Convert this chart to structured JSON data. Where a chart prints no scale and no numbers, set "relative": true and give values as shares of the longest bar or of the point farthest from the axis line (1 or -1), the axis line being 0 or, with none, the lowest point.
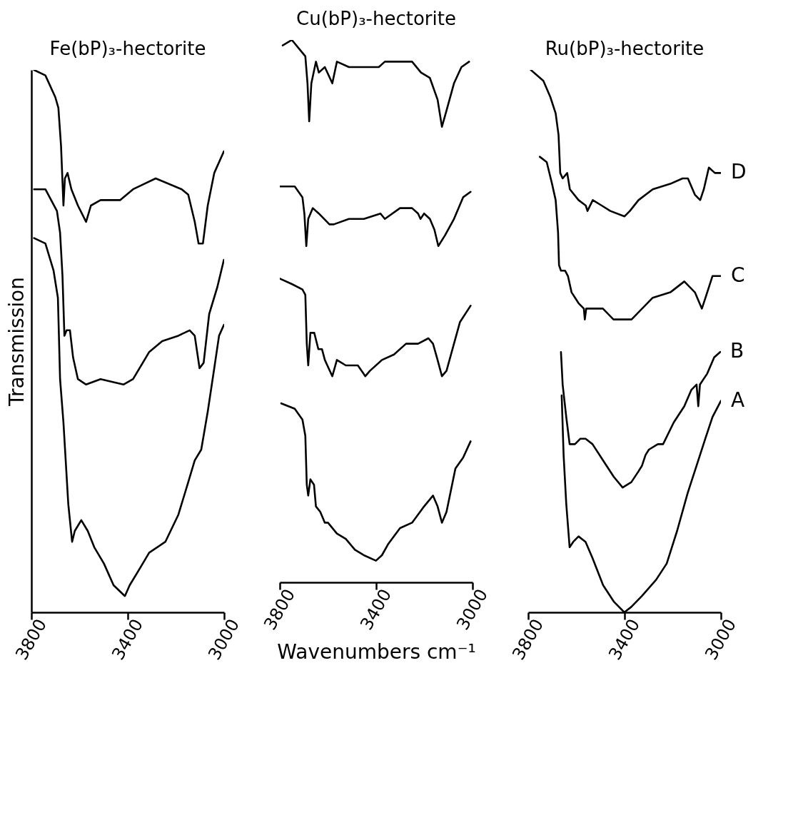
{
  "chart_data": [
    {
      "type": "line",
      "title": "Fe(bP)₃-hectorite",
      "ylabel": "Transmission",
      "relative": true,
      "xlim": [
        3800,
        3000
      ],
      "xticks": [
        3800,
        3400,
        3000
      ],
      "legend": false,
      "series": [
        {
          "color": "#000000",
          "x": [
            3789,
            3742,
            3701,
            3688,
            3677,
            3667,
            3661,
            3650,
            3634,
            3607,
            3573,
            3553,
            3513,
            3432,
            3378,
            3284,
            3176,
            3149,
            3122,
            3106,
            3088,
            3068,
            3041,
            3001
          ],
          "values": [
            1.0,
            0.99,
            0.95,
            0.93,
            0.86,
            0.75,
            0.8,
            0.81,
            0.78,
            0.75,
            0.72,
            0.75,
            0.76,
            0.76,
            0.78,
            0.8,
            0.78,
            0.77,
            0.72,
            0.68,
            0.68,
            0.75,
            0.81,
            0.85
          ]
        },
        {
          "color": "#000000",
          "x": [
            3789,
            3742,
            3694,
            3681,
            3671,
            3663,
            3654,
            3640,
            3627,
            3607,
            3573,
            3513,
            3418,
            3378,
            3311,
            3257,
            3190,
            3143,
            3122,
            3102,
            3085,
            3062,
            3028,
            3001
          ],
          "values": [
            0.78,
            0.78,
            0.74,
            0.7,
            0.62,
            0.51,
            0.52,
            0.52,
            0.47,
            0.43,
            0.42,
            0.43,
            0.42,
            0.43,
            0.48,
            0.5,
            0.51,
            0.52,
            0.51,
            0.45,
            0.46,
            0.55,
            0.6,
            0.65
          ]
        },
        {
          "color": "#000000",
          "x": [
            3789,
            3742,
            3708,
            3690,
            3681,
            3667,
            3647,
            3631,
            3620,
            3593,
            3566,
            3539,
            3499,
            3459,
            3412,
            3392,
            3351,
            3311,
            3244,
            3190,
            3149,
            3122,
            3095,
            3068,
            3041,
            3021,
            3001
          ],
          "values": [
            0.69,
            0.68,
            0.63,
            0.58,
            0.43,
            0.35,
            0.2,
            0.13,
            0.15,
            0.17,
            0.15,
            0.12,
            0.09,
            0.05,
            0.03,
            0.05,
            0.08,
            0.11,
            0.13,
            0.18,
            0.24,
            0.28,
            0.3,
            0.37,
            0.45,
            0.51,
            0.53
          ]
        }
      ]
    },
    {
      "type": "line",
      "title": "Cu(bP)₃-hectorite",
      "xlabel": "Wavenumbers cm⁻¹",
      "relative": true,
      "xlim": [
        3800,
        3000
      ],
      "xticks": [
        3800,
        3400,
        3000
      ],
      "legend": false,
      "series": [
        {
          "color": "#000000",
          "x": [
            3788,
            3750,
            3713,
            3694,
            3685,
            3678,
            3669,
            3650,
            3638,
            3613,
            3582,
            3563,
            3513,
            3451,
            3389,
            3364,
            3251,
            3214,
            3177,
            3145,
            3127,
            3108,
            3077,
            3046,
            3014
          ],
          "values": [
            0.99,
            1.0,
            0.98,
            0.97,
            0.92,
            0.85,
            0.92,
            0.96,
            0.94,
            0.95,
            0.92,
            0.96,
            0.95,
            0.95,
            0.95,
            0.96,
            0.96,
            0.94,
            0.93,
            0.89,
            0.84,
            0.87,
            0.92,
            0.95,
            0.96
          ]
        },
        {
          "color": "#000000",
          "x": [
            3800,
            3738,
            3706,
            3698,
            3690,
            3682,
            3663,
            3638,
            3594,
            3576,
            3513,
            3451,
            3382,
            3364,
            3301,
            3251,
            3226,
            3216,
            3201,
            3177,
            3158,
            3142,
            3114,
            3077,
            3039,
            3008
          ],
          "values": [
            0.73,
            0.73,
            0.71,
            0.68,
            0.62,
            0.67,
            0.69,
            0.68,
            0.66,
            0.66,
            0.67,
            0.67,
            0.68,
            0.67,
            0.69,
            0.69,
            0.68,
            0.67,
            0.68,
            0.67,
            0.65,
            0.62,
            0.64,
            0.67,
            0.71,
            0.72
          ]
        },
        {
          "color": "#000000",
          "x": [
            3800,
            3750,
            3706,
            3694,
            3688,
            3682,
            3673,
            3657,
            3640,
            3625,
            3613,
            3582,
            3563,
            3526,
            3476,
            3445,
            3426,
            3376,
            3326,
            3276,
            3226,
            3183,
            3164,
            3145,
            3127,
            3108,
            3077,
            3052,
            3008
          ],
          "values": [
            0.56,
            0.55,
            0.54,
            0.53,
            0.44,
            0.4,
            0.46,
            0.46,
            0.43,
            0.43,
            0.41,
            0.38,
            0.41,
            0.4,
            0.4,
            0.38,
            0.39,
            0.41,
            0.42,
            0.44,
            0.44,
            0.45,
            0.44,
            0.41,
            0.38,
            0.39,
            0.44,
            0.48,
            0.51
          ]
        },
        {
          "color": "#000000",
          "x": [
            3794,
            3738,
            3706,
            3694,
            3688,
            3682,
            3673,
            3658,
            3650,
            3632,
            3613,
            3600,
            3563,
            3526,
            3488,
            3451,
            3401,
            3376,
            3351,
            3301,
            3251,
            3201,
            3164,
            3145,
            3127,
            3108,
            3071,
            3039,
            3008
          ],
          "values": [
            0.33,
            0.32,
            0.3,
            0.27,
            0.18,
            0.16,
            0.19,
            0.18,
            0.14,
            0.13,
            0.11,
            0.11,
            0.09,
            0.08,
            0.06,
            0.05,
            0.04,
            0.05,
            0.07,
            0.1,
            0.11,
            0.14,
            0.16,
            0.14,
            0.11,
            0.13,
            0.21,
            0.23,
            0.26
          ]
        }
      ]
    },
    {
      "type": "line",
      "title": "Ru(bP)₃-hectorite",
      "relative": true,
      "xlim": [
        3800,
        3000
      ],
      "xticks": [
        3800,
        3400,
        3000
      ],
      "legend": false,
      "series": [
        {
          "name": "D",
          "color": "#000000",
          "x": [
            3789,
            3737,
            3708,
            3686,
            3674,
            3667,
            3657,
            3638,
            3627,
            3591,
            3561,
            3554,
            3532,
            3495,
            3459,
            3400,
            3378,
            3342,
            3283,
            3210,
            3159,
            3137,
            3108,
            3086,
            3071,
            3050,
            3025,
            3010,
            3000
          ],
          "values": [
            1.0,
            0.98,
            0.95,
            0.92,
            0.88,
            0.81,
            0.8,
            0.81,
            0.78,
            0.76,
            0.75,
            0.74,
            0.76,
            0.75,
            0.74,
            0.73,
            0.74,
            0.76,
            0.78,
            0.79,
            0.8,
            0.8,
            0.77,
            0.76,
            0.78,
            0.82,
            0.81,
            0.81,
            0.81
          ]
        },
        {
          "name": "C",
          "color": "#000000",
          "x": [
            3752,
            3723,
            3701,
            3686,
            3676,
            3672,
            3664,
            3647,
            3635,
            3620,
            3591,
            3569,
            3565,
            3559,
            3532,
            3490,
            3446,
            3400,
            3371,
            3327,
            3283,
            3210,
            3152,
            3108,
            3079,
            3064,
            3035,
            3010,
            3000
          ],
          "values": [
            0.84,
            0.83,
            0.79,
            0.76,
            0.7,
            0.64,
            0.63,
            0.63,
            0.62,
            0.59,
            0.57,
            0.56,
            0.54,
            0.56,
            0.56,
            0.56,
            0.54,
            0.54,
            0.54,
            0.56,
            0.58,
            0.59,
            0.61,
            0.59,
            0.56,
            0.58,
            0.62,
            0.62,
            0.62
          ]
        },
        {
          "name": "B",
          "color": "#000000",
          "x": [
            3664,
            3657,
            3642,
            3628,
            3606,
            3584,
            3562,
            3533,
            3489,
            3445,
            3408,
            3372,
            3342,
            3328,
            3313,
            3299,
            3262,
            3240,
            3196,
            3152,
            3123,
            3101,
            3094,
            3087,
            3057,
            3028,
            3003
          ],
          "values": [
            0.48,
            0.42,
            0.36,
            0.31,
            0.31,
            0.32,
            0.32,
            0.31,
            0.28,
            0.25,
            0.23,
            0.24,
            0.26,
            0.27,
            0.29,
            0.3,
            0.31,
            0.31,
            0.35,
            0.38,
            0.41,
            0.42,
            0.38,
            0.42,
            0.44,
            0.47,
            0.48
          ]
        },
        {
          "name": "A",
          "color": "#000000",
          "x": [
            3661,
            3653,
            3642,
            3628,
            3613,
            3591,
            3562,
            3533,
            3489,
            3445,
            3401,
            3372,
            3328,
            3269,
            3225,
            3182,
            3138,
            3094,
            3065,
            3035,
            3000
          ],
          "values": [
            0.4,
            0.29,
            0.2,
            0.12,
            0.13,
            0.14,
            0.13,
            0.1,
            0.05,
            0.02,
            0.0,
            0.01,
            0.03,
            0.06,
            0.09,
            0.15,
            0.22,
            0.28,
            0.32,
            0.36,
            0.39
          ]
        }
      ]
    }
  ]
}
